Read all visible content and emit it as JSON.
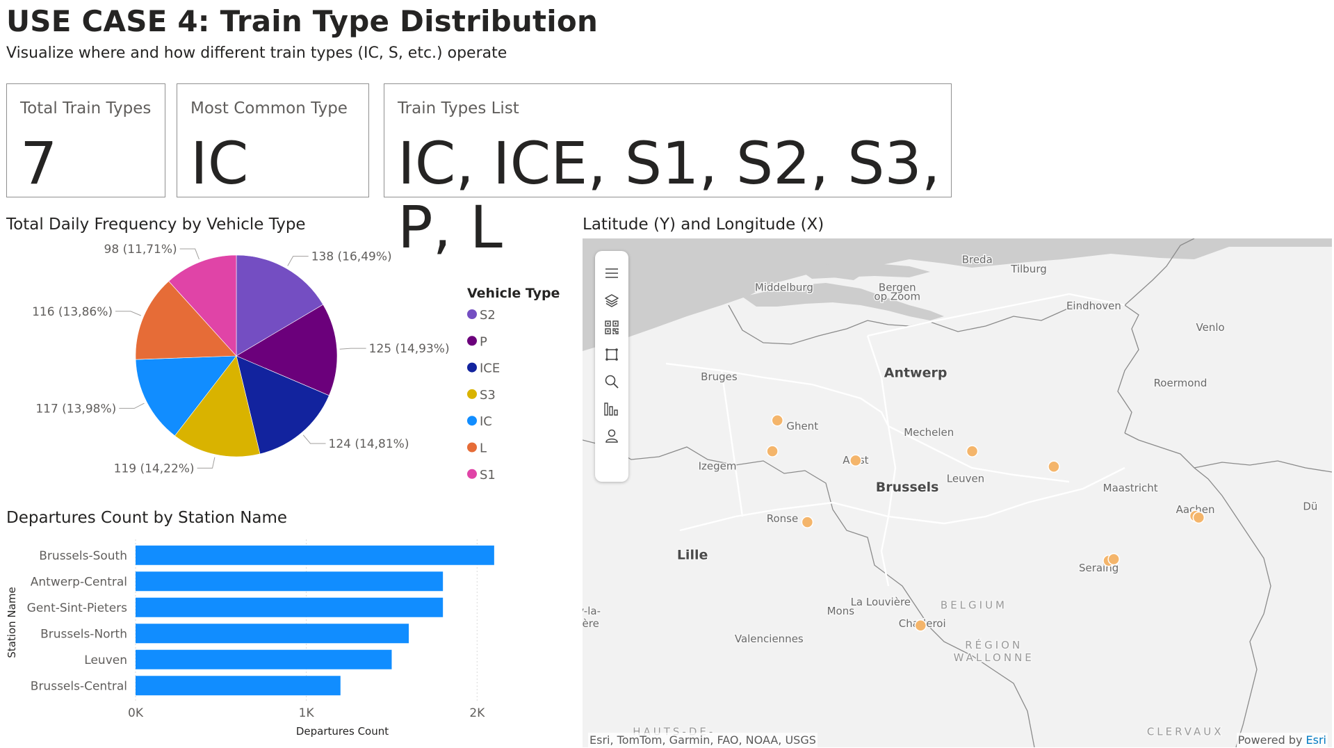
{
  "header": {
    "title": "USE CASE 4: Train Type Distribution",
    "subtitle": "Visualize where and how different train types (IC, S, etc.) operate"
  },
  "cards": [
    {
      "label": "Total Train Types",
      "value": "7"
    },
    {
      "label": "Most Common Type",
      "value": "IC"
    },
    {
      "label": "Train Types List",
      "value": "IC, ICE, S1, S2, S3, P, L"
    }
  ],
  "pie_visual": {
    "title": "Total Daily Frequency by Vehicle Type",
    "legend_title": "Vehicle Type"
  },
  "bar_visual": {
    "title": "Departures Count by Station Name"
  },
  "map_visual": {
    "title": "Latitude (Y) and Longitude (X)",
    "attribution": "Esri, TomTom, Garmin, FAO, NOAA, USGS",
    "powered_by": "Powered by",
    "powered_link": "Esri",
    "labels": [
      {
        "text": "Breda",
        "lon": 4.77,
        "lat": 51.59
      },
      {
        "text": "Tilburg",
        "lon": 5.08,
        "lat": 51.56
      },
      {
        "text": "Middelburg",
        "lon": 3.61,
        "lat": 51.5
      },
      {
        "text": "Bergen",
        "lon": 4.29,
        "lat": 51.5
      },
      {
        "text": "op Zoom",
        "lon": 4.29,
        "lat": 51.47
      },
      {
        "text": "Eindhoven",
        "lon": 5.47,
        "lat": 51.44
      },
      {
        "text": "Venlo",
        "lon": 6.17,
        "lat": 51.37
      },
      {
        "text": "Antwerp",
        "lon": 4.4,
        "lat": 51.22,
        "major": true
      },
      {
        "text": "Bruges",
        "lon": 3.22,
        "lat": 51.21
      },
      {
        "text": "Roermond",
        "lon": 5.99,
        "lat": 51.19
      },
      {
        "text": "Ghent",
        "lon": 3.72,
        "lat": 51.05
      },
      {
        "text": "Mechelen",
        "lon": 4.48,
        "lat": 51.03
      },
      {
        "text": "Aalst",
        "lon": 4.04,
        "lat": 50.94
      },
      {
        "text": "Izegem",
        "lon": 3.21,
        "lat": 50.92
      },
      {
        "text": "Brussels",
        "lon": 4.35,
        "lat": 50.85,
        "major": true
      },
      {
        "text": "Leuven",
        "lon": 4.7,
        "lat": 50.88
      },
      {
        "text": "Maastricht",
        "lon": 5.69,
        "lat": 50.85
      },
      {
        "text": "Aachen",
        "lon": 6.08,
        "lat": 50.78
      },
      {
        "text": "Ronse",
        "lon": 3.6,
        "lat": 50.75
      },
      {
        "text": "Lille",
        "lon": 3.06,
        "lat": 50.63,
        "major": true
      },
      {
        "text": "Seraing",
        "lon": 5.5,
        "lat": 50.59
      },
      {
        "text": "La Louvière",
        "lon": 4.19,
        "lat": 50.48
      },
      {
        "text": "Mons",
        "lon": 3.95,
        "lat": 50.45
      },
      {
        "text": "Charleroi",
        "lon": 4.44,
        "lat": 50.41
      },
      {
        "text": "BELGIUM",
        "lon": 4.75,
        "lat": 50.47,
        "spaced": true
      },
      {
        "text": "Valenciennes",
        "lon": 3.52,
        "lat": 50.36
      },
      {
        "text": "RÉGION",
        "lon": 4.87,
        "lat": 50.34,
        "spaced": true
      },
      {
        "text": "WALLONNE",
        "lon": 4.87,
        "lat": 50.3,
        "spaced": true
      },
      {
        "text": "HAUTS-DE-",
        "lon": 2.95,
        "lat": 50.06,
        "spaced": true
      },
      {
        "text": "CLERVAUX",
        "lon": 6.02,
        "lat": 50.06,
        "spaced": true
      },
      {
        "text": "y-la-",
        "lon": 2.44,
        "lat": 50.45
      },
      {
        "text": "ière",
        "lon": 2.44,
        "lat": 50.41
      },
      {
        "text": "Dü",
        "lon": 6.77,
        "lat": 50.79
      }
    ],
    "points": [
      {
        "lon": 3.57,
        "lat": 51.08
      },
      {
        "lon": 3.54,
        "lat": 50.98
      },
      {
        "lon": 4.04,
        "lat": 50.95
      },
      {
        "lon": 4.74,
        "lat": 50.98
      },
      {
        "lon": 5.23,
        "lat": 50.93
      },
      {
        "lon": 3.75,
        "lat": 50.75
      },
      {
        "lon": 6.08,
        "lat": 50.77
      },
      {
        "lon": 6.1,
        "lat": 50.765
      },
      {
        "lon": 5.56,
        "lat": 50.625
      },
      {
        "lon": 5.59,
        "lat": 50.63
      },
      {
        "lon": 4.43,
        "lat": 50.415
      }
    ],
    "colors": {
      "land": "#f2f2f2",
      "water": "#cdcdcd",
      "border": "#8a8a8a",
      "point": "#f4b56b",
      "point_stroke": "#ffffff"
    }
  },
  "chart_data": [
    {
      "type": "pie",
      "title": "Total Daily Frequency by Vehicle Type",
      "legend_title": "Vehicle Type",
      "legend_position": "right",
      "slices": [
        {
          "label": "S2",
          "value": 138,
          "data_label": "138 (16,49%)",
          "color": "#744ec2"
        },
        {
          "label": "P",
          "value": 125,
          "data_label": "125 (14,93%)",
          "color": "#6b007b"
        },
        {
          "label": "ICE",
          "value": 124,
          "data_label": "124 (14,81%)",
          "color": "#12239e"
        },
        {
          "label": "S3",
          "value": 119,
          "data_label": "119 (14,22%)",
          "color": "#d9b300"
        },
        {
          "label": "IC",
          "value": 117,
          "data_label": "117 (13,98%)",
          "color": "#118dff"
        },
        {
          "label": "L",
          "value": 116,
          "data_label": "116 (13,86%)",
          "color": "#e66c37"
        },
        {
          "label": "S1",
          "value": 98,
          "data_label": "98 (11,71%)",
          "color": "#e044a7"
        }
      ]
    },
    {
      "type": "bar",
      "orientation": "horizontal",
      "title": "Departures Count by Station Name",
      "xlabel": "Departures Count",
      "ylabel": "Station Name",
      "categories": [
        "Brussels-South",
        "Antwerp-Central",
        "Gent-Sint-Pieters",
        "Brussels-North",
        "Leuven",
        "Brussels-Central"
      ],
      "values": [
        2100,
        1800,
        1800,
        1600,
        1500,
        1200
      ],
      "xlim": [
        0,
        2300
      ],
      "xticks": [
        {
          "value": 0,
          "label": "0K"
        },
        {
          "value": 1000,
          "label": "1K"
        },
        {
          "value": 2000,
          "label": "2K"
        }
      ],
      "grid": true,
      "color": "#118dff"
    }
  ]
}
